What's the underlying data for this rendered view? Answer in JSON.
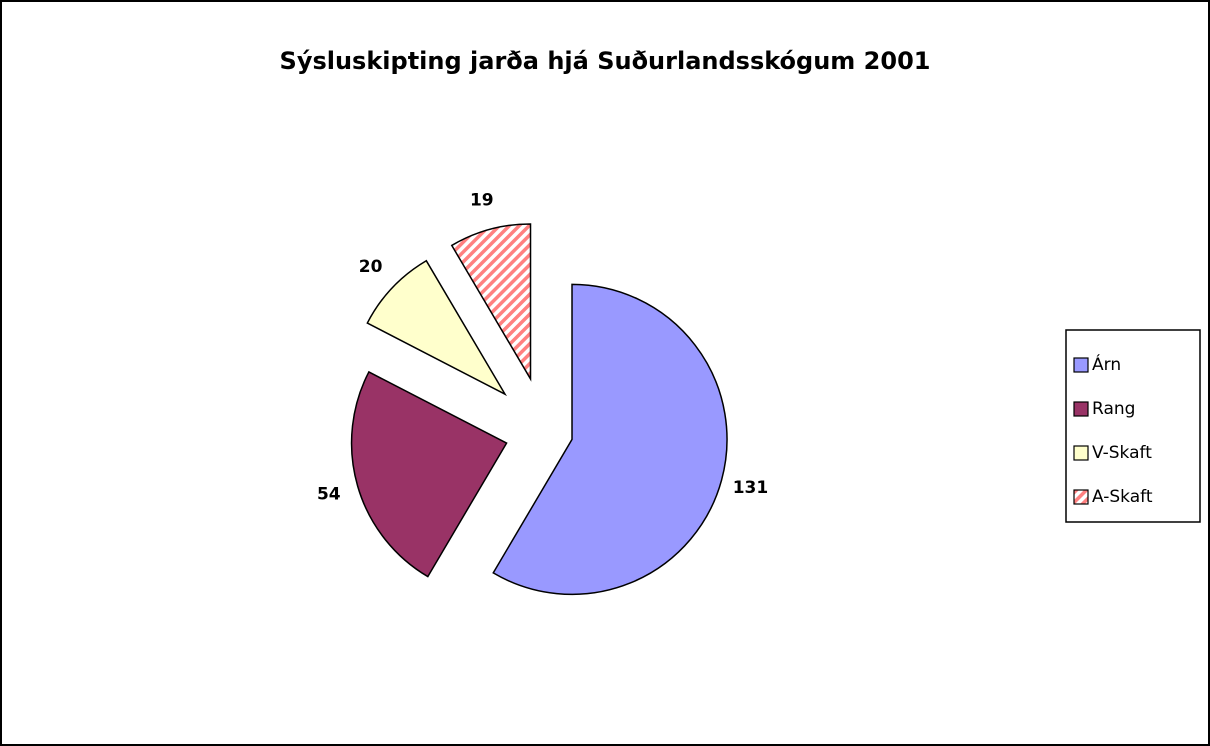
{
  "chart_data": {
    "type": "pie",
    "title": "Sýsluskipting jarða hjá Suðurlandsskógum 2001",
    "categories": [
      "Árn",
      "Rang",
      "V-Skaft",
      "A-Skaft"
    ],
    "values": [
      131,
      54,
      20,
      19
    ],
    "colors": [
      "#9999ff",
      "#993366",
      "#ffffcc",
      "#ff9999"
    ],
    "legend": "right"
  }
}
